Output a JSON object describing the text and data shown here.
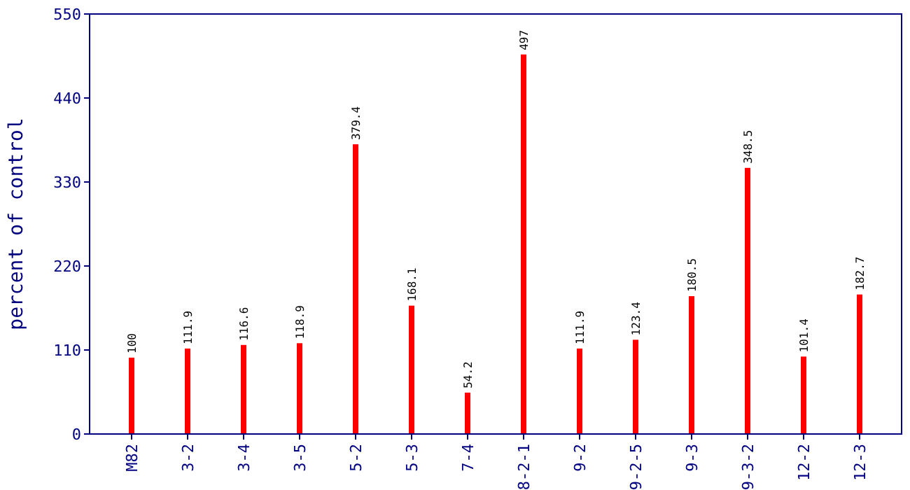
{
  "chart_data": {
    "type": "bar",
    "ylabel": "percent of control",
    "categories": [
      "M82",
      "3-2",
      "3-4",
      "3-5",
      "5-2",
      "5-3",
      "7-4",
      "8-2-1",
      "9-2",
      "9-2-5",
      "9-3",
      "9-3-2",
      "12-2",
      "12-3"
    ],
    "values": [
      100,
      111.9,
      116.6,
      118.9,
      379.4,
      168.1,
      54.2,
      497,
      111.9,
      123.4,
      180.5,
      348.5,
      101.4,
      182.7
    ],
    "color": "#ff0000",
    "ylim": [
      0,
      550
    ],
    "yticks": [
      0,
      110,
      220,
      330,
      440,
      550
    ],
    "data_labels": true,
    "grid": false
  }
}
